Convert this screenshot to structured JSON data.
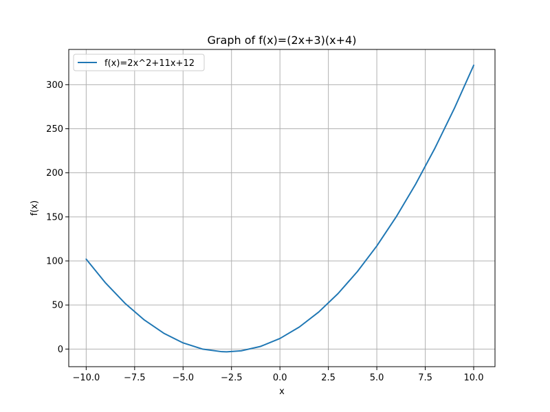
{
  "chart_data": {
    "type": "line",
    "title": "Graph of f(x)=(2x+3)(x+4)",
    "xlabel": "x",
    "ylabel": "f(x)",
    "xlim": [
      -10.9,
      11.1
    ],
    "ylim": [
      -20,
      340
    ],
    "xticks": [
      -10.0,
      -7.5,
      -5.0,
      -2.5,
      0.0,
      2.5,
      5.0,
      7.5,
      10.0
    ],
    "xtick_labels": [
      "−10.0",
      "−7.5",
      "−5.0",
      "−2.5",
      "0.0",
      "2.5",
      "5.0",
      "7.5",
      "10.0"
    ],
    "yticks": [
      0,
      50,
      100,
      150,
      200,
      250,
      300
    ],
    "ytick_labels": [
      "0",
      "50",
      "100",
      "150",
      "200",
      "250",
      "300"
    ],
    "grid": true,
    "legend_position": "top-left",
    "series": [
      {
        "name": "f(x)=2x^2+11x+12",
        "color": "#1f77b4",
        "x": [
          -10,
          -9,
          -8,
          -7,
          -6,
          -5,
          -4,
          -3,
          -2.75,
          -2,
          -1,
          0,
          1,
          2,
          3,
          4,
          5,
          6,
          7,
          8,
          9,
          10
        ],
        "y": [
          102,
          75,
          52,
          33,
          18,
          7,
          0,
          -3,
          -3.125,
          -2,
          3,
          12,
          25,
          42,
          63,
          88,
          117,
          150,
          187,
          228,
          273,
          322
        ]
      }
    ]
  }
}
